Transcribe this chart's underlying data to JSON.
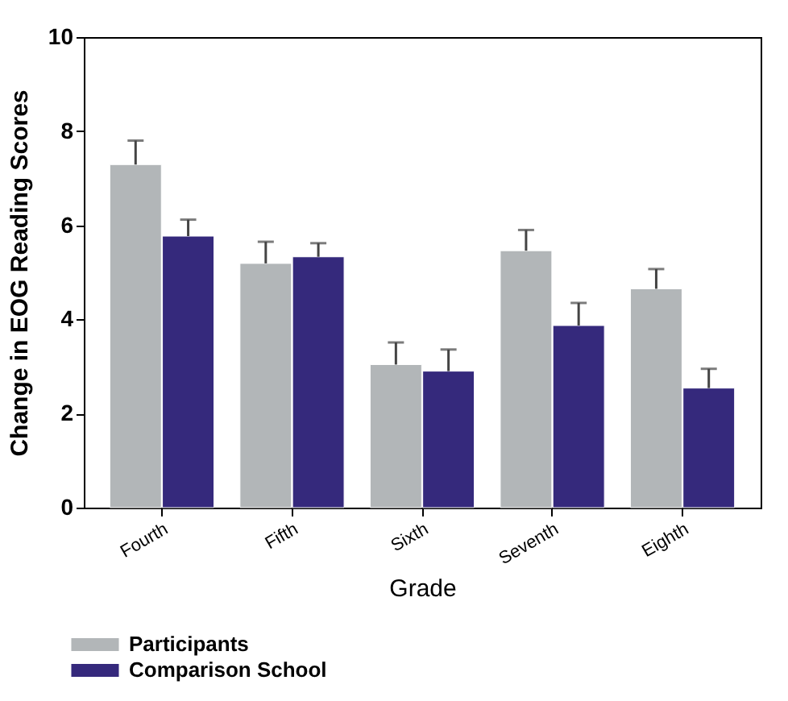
{
  "chart_data": {
    "type": "bar",
    "xlabel": "Grade",
    "ylabel": "Change in EOG  Reading Scores",
    "categories": [
      "Fourth",
      "Fifth",
      "Sixth",
      "Seventh",
      "Eighth"
    ],
    "series": [
      {
        "name": "Participants",
        "color": "#b2b6b8",
        "values": [
          7.29,
          5.19,
          3.04,
          5.46,
          4.65
        ],
        "errors": [
          [
            7.29,
            7.8
          ],
          [
            5.19,
            5.65
          ],
          [
            3.04,
            3.51
          ],
          [
            5.46,
            5.9
          ],
          [
            4.65,
            5.07
          ]
        ]
      },
      {
        "name": "Comparison School",
        "color": "#35297c",
        "values": [
          5.77,
          5.33,
          2.9,
          3.87,
          2.54
        ],
        "errors": [
          [
            5.77,
            6.12
          ],
          [
            5.33,
            5.62
          ],
          [
            2.9,
            3.36
          ],
          [
            3.87,
            4.35
          ],
          [
            2.54,
            2.95
          ]
        ]
      }
    ],
    "ylim": [
      0,
      10
    ],
    "yticks": [
      0,
      2,
      4,
      6,
      8,
      10
    ],
    "grid": false,
    "legend": "bottom"
  }
}
